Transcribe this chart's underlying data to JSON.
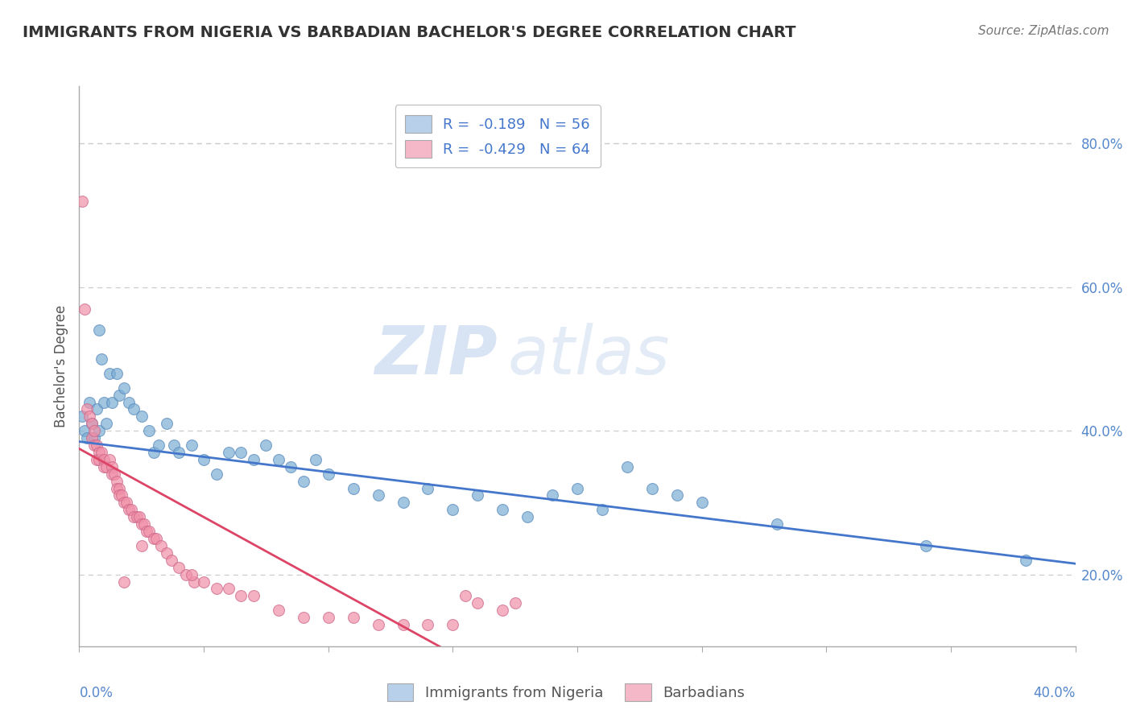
{
  "title": "IMMIGRANTS FROM NIGERIA VS BARBADIAN BACHELOR'S DEGREE CORRELATION CHART",
  "source": "Source: ZipAtlas.com",
  "ylabel": "Bachelor's Degree",
  "right_yticks": [
    "20.0%",
    "40.0%",
    "60.0%",
    "80.0%"
  ],
  "right_ytick_vals": [
    0.2,
    0.4,
    0.6,
    0.8
  ],
  "xlim": [
    0.0,
    0.4
  ],
  "ylim": [
    0.1,
    0.88
  ],
  "legend_blue_label": "R =  -0.189   N = 56",
  "legend_pink_label": "R =  -0.429   N = 64",
  "legend_blue_facecolor": "#b8d0ea",
  "legend_pink_facecolor": "#f4b8c8",
  "watermark_zip": "ZIP",
  "watermark_atlas": "atlas",
  "blue_scatter_color": "#7badd4",
  "pink_scatter_color": "#f090a8",
  "blue_edge_color": "#5588bb",
  "pink_edge_color": "#cc6688",
  "blue_line_color": "#4477cc",
  "pink_line_color": "#dd4466",
  "background_color": "#ffffff",
  "grid_color": "#cccccc",
  "axis_color": "#aaaaaa",
  "tick_label_color": "#5588cc",
  "title_color": "#333333",
  "source_color": "#777777",
  "ylabel_color": "#555555",
  "bottom_legend_label_color": "#555555",
  "title_fontsize": 14,
  "axis_label_fontsize": 12,
  "tick_fontsize": 12,
  "legend_fontsize": 13,
  "watermark_zip_fontsize": 60,
  "watermark_atlas_fontsize": 60,
  "source_fontsize": 11,
  "scatter_size": 100,
  "scatter_alpha": 0.7,
  "scatter_linewidth": 0.8,
  "blue_line_start_x": 0.0,
  "blue_line_end_x": 0.4,
  "blue_line_start_y": 0.385,
  "blue_line_end_y": 0.215,
  "pink_line_start_x": 0.0,
  "pink_line_end_x": 0.155,
  "pink_line_start_y": 0.375,
  "pink_line_end_y": 0.08,
  "blue_points": [
    [
      0.001,
      0.42
    ],
    [
      0.002,
      0.4
    ],
    [
      0.003,
      0.39
    ],
    [
      0.004,
      0.44
    ],
    [
      0.005,
      0.41
    ],
    [
      0.006,
      0.39
    ],
    [
      0.007,
      0.43
    ],
    [
      0.008,
      0.4
    ],
    [
      0.008,
      0.54
    ],
    [
      0.009,
      0.5
    ],
    [
      0.01,
      0.44
    ],
    [
      0.011,
      0.41
    ],
    [
      0.012,
      0.48
    ],
    [
      0.013,
      0.44
    ],
    [
      0.015,
      0.48
    ],
    [
      0.016,
      0.45
    ],
    [
      0.018,
      0.46
    ],
    [
      0.02,
      0.44
    ],
    [
      0.022,
      0.43
    ],
    [
      0.025,
      0.42
    ],
    [
      0.028,
      0.4
    ],
    [
      0.03,
      0.37
    ],
    [
      0.032,
      0.38
    ],
    [
      0.035,
      0.41
    ],
    [
      0.038,
      0.38
    ],
    [
      0.04,
      0.37
    ],
    [
      0.045,
      0.38
    ],
    [
      0.05,
      0.36
    ],
    [
      0.055,
      0.34
    ],
    [
      0.06,
      0.37
    ],
    [
      0.065,
      0.37
    ],
    [
      0.07,
      0.36
    ],
    [
      0.075,
      0.38
    ],
    [
      0.08,
      0.36
    ],
    [
      0.085,
      0.35
    ],
    [
      0.09,
      0.33
    ],
    [
      0.095,
      0.36
    ],
    [
      0.1,
      0.34
    ],
    [
      0.11,
      0.32
    ],
    [
      0.12,
      0.31
    ],
    [
      0.13,
      0.3
    ],
    [
      0.14,
      0.32
    ],
    [
      0.15,
      0.29
    ],
    [
      0.16,
      0.31
    ],
    [
      0.17,
      0.29
    ],
    [
      0.18,
      0.28
    ],
    [
      0.19,
      0.31
    ],
    [
      0.2,
      0.32
    ],
    [
      0.21,
      0.29
    ],
    [
      0.22,
      0.35
    ],
    [
      0.23,
      0.32
    ],
    [
      0.24,
      0.31
    ],
    [
      0.25,
      0.3
    ],
    [
      0.28,
      0.27
    ],
    [
      0.34,
      0.24
    ],
    [
      0.38,
      0.22
    ]
  ],
  "pink_points": [
    [
      0.001,
      0.72
    ],
    [
      0.002,
      0.57
    ],
    [
      0.003,
      0.43
    ],
    [
      0.004,
      0.42
    ],
    [
      0.005,
      0.41
    ],
    [
      0.005,
      0.39
    ],
    [
      0.006,
      0.4
    ],
    [
      0.006,
      0.38
    ],
    [
      0.007,
      0.38
    ],
    [
      0.007,
      0.36
    ],
    [
      0.008,
      0.37
    ],
    [
      0.008,
      0.36
    ],
    [
      0.009,
      0.37
    ],
    [
      0.01,
      0.36
    ],
    [
      0.01,
      0.35
    ],
    [
      0.011,
      0.35
    ],
    [
      0.012,
      0.36
    ],
    [
      0.013,
      0.35
    ],
    [
      0.013,
      0.34
    ],
    [
      0.014,
      0.34
    ],
    [
      0.015,
      0.33
    ],
    [
      0.015,
      0.32
    ],
    [
      0.016,
      0.32
    ],
    [
      0.016,
      0.31
    ],
    [
      0.017,
      0.31
    ],
    [
      0.018,
      0.3
    ],
    [
      0.019,
      0.3
    ],
    [
      0.02,
      0.29
    ],
    [
      0.021,
      0.29
    ],
    [
      0.022,
      0.28
    ],
    [
      0.023,
      0.28
    ],
    [
      0.024,
      0.28
    ],
    [
      0.025,
      0.27
    ],
    [
      0.026,
      0.27
    ],
    [
      0.027,
      0.26
    ],
    [
      0.028,
      0.26
    ],
    [
      0.03,
      0.25
    ],
    [
      0.031,
      0.25
    ],
    [
      0.033,
      0.24
    ],
    [
      0.035,
      0.23
    ],
    [
      0.037,
      0.22
    ],
    [
      0.04,
      0.21
    ],
    [
      0.043,
      0.2
    ],
    [
      0.046,
      0.19
    ],
    [
      0.05,
      0.19
    ],
    [
      0.055,
      0.18
    ],
    [
      0.06,
      0.18
    ],
    [
      0.065,
      0.17
    ],
    [
      0.07,
      0.17
    ],
    [
      0.08,
      0.15
    ],
    [
      0.09,
      0.14
    ],
    [
      0.1,
      0.14
    ],
    [
      0.11,
      0.14
    ],
    [
      0.12,
      0.13
    ],
    [
      0.13,
      0.13
    ],
    [
      0.14,
      0.13
    ],
    [
      0.15,
      0.13
    ],
    [
      0.155,
      0.17
    ],
    [
      0.16,
      0.16
    ],
    [
      0.17,
      0.15
    ],
    [
      0.175,
      0.16
    ],
    [
      0.018,
      0.19
    ],
    [
      0.045,
      0.2
    ],
    [
      0.025,
      0.24
    ]
  ]
}
